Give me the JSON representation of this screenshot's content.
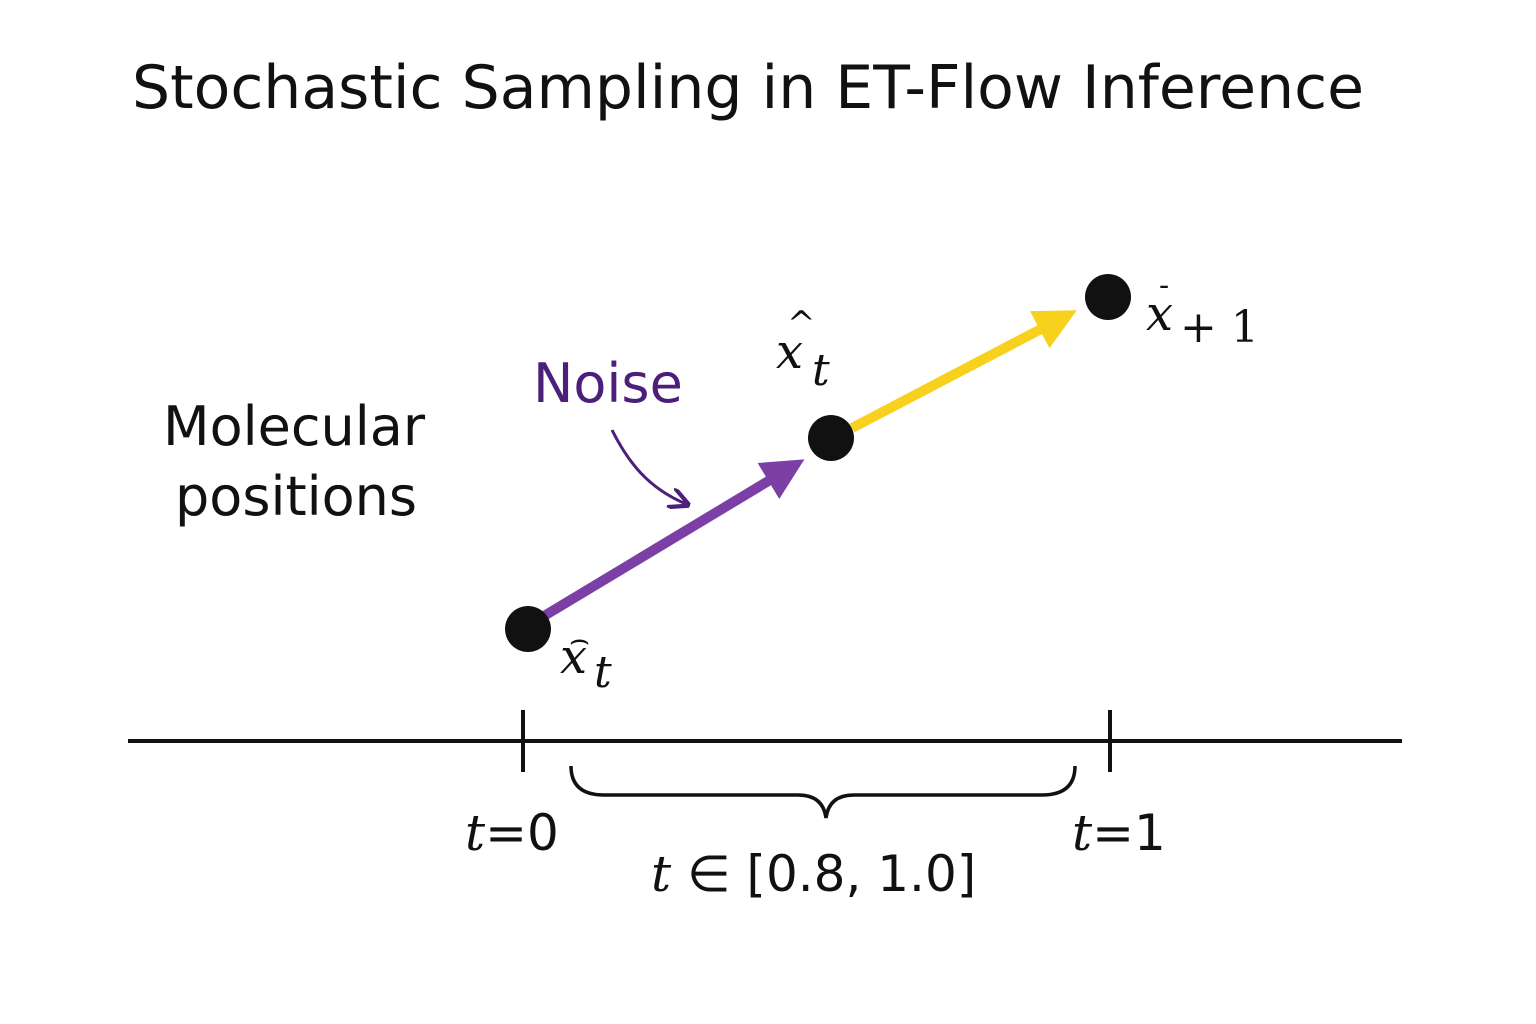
{
  "title": "Stochastic Sampling in ET-Flow Inference",
  "side_label": {
    "line1": "Molecular",
    "line2": "positions"
  },
  "noise_label": "Noise",
  "points": {
    "start": {
      "symbol": "x",
      "accent": "⌢",
      "subscript": "t"
    },
    "middle": {
      "symbol": "x",
      "accent": "^",
      "subscript": "t"
    },
    "end": {
      "symbol": "x",
      "accent": "-",
      "subscript": "+ 1"
    }
  },
  "timeline": {
    "t0_var": "t",
    "t0_rest": "=0",
    "t1_var": "t",
    "t1_rest": "=1",
    "interval_var": "t",
    "interval_rest": " ∈ [0.8, 1.0]"
  },
  "colors": {
    "noise_arrow": "#7b3fa6",
    "noise_text": "#4b1f7a",
    "flow_arrow": "#f7d11e",
    "point": "#111111",
    "axis": "#111111"
  },
  "icons": {
    "noise_pointer": "curved-arrow-icon"
  }
}
